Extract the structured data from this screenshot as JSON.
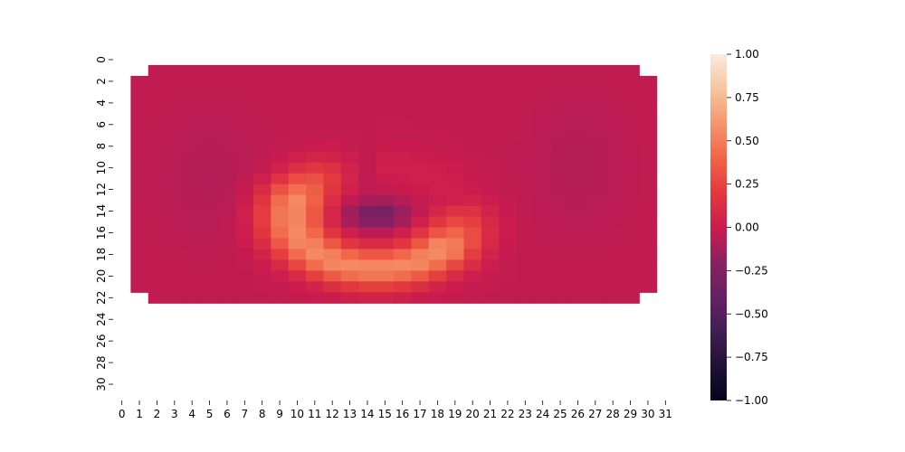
{
  "chart_data": {
    "type": "heatmap",
    "title": "",
    "xlabel": "",
    "ylabel": "",
    "x_tick_labels": [
      "0",
      "1",
      "2",
      "3",
      "4",
      "5",
      "6",
      "7",
      "8",
      "9",
      "10",
      "11",
      "12",
      "13",
      "14",
      "15",
      "16",
      "17",
      "18",
      "19",
      "20",
      "21",
      "22",
      "23",
      "24",
      "25",
      "26",
      "27",
      "28",
      "29",
      "30",
      "31"
    ],
    "y_tick_labels": [
      "0",
      "2",
      "4",
      "6",
      "8",
      "10",
      "12",
      "14",
      "16",
      "18",
      "20",
      "22",
      "24",
      "26",
      "28",
      "30"
    ],
    "grid_size": [
      32,
      32
    ],
    "colorbar": {
      "vmin": -1.0,
      "vmax": 1.0,
      "tick_labels": [
        "1.00",
        "0.75",
        "0.50",
        "0.25",
        "0.00",
        "−0.25",
        "−0.50",
        "−0.75",
        "−1.00"
      ],
      "colormap": "rocket"
    },
    "layout_notes": "Rows 0 and 23-31 are empty (blank). Rows 1 and 22 span columns 2-29; rows 2-21 span columns 1-30. Column 31 is blank.",
    "background_value": -0.03,
    "features": [
      {
        "shape": "crescent",
        "center_col": 14.5,
        "center_row": 14.5,
        "peak_value": 0.55,
        "description": "bright orange crescent from left (cols 8-11, rows 9-20) curving to bottom-right (cols 13-19, rows 16-21)"
      },
      {
        "shape": "spot",
        "center_col": 14.5,
        "center_row": 14.5,
        "peak_value": -0.32,
        "description": "dark purple low inside crescent"
      }
    ]
  }
}
